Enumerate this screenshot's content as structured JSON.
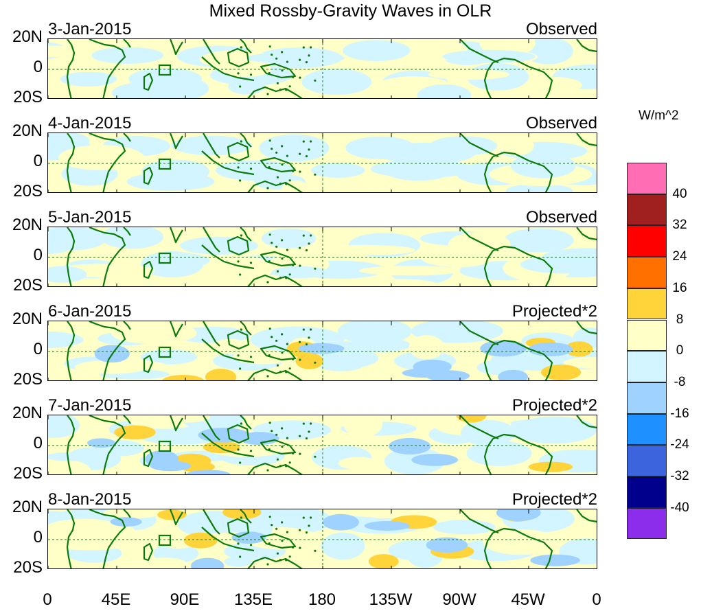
{
  "title": "Mixed Rossby-Gravity Waves in OLR",
  "units": "W/m^2",
  "panels": [
    {
      "date": "3-Jan-2015",
      "tag": "Observed"
    },
    {
      "date": "4-Jan-2015",
      "tag": "Observed"
    },
    {
      "date": "5-Jan-2015",
      "tag": "Observed"
    },
    {
      "date": "6-Jan-2015",
      "tag": "Projected*2"
    },
    {
      "date": "7-Jan-2015",
      "tag": "Projected*2"
    },
    {
      "date": "8-Jan-2015",
      "tag": "Projected*2"
    }
  ],
  "lat_labels": [
    "20N",
    "0",
    "20S"
  ],
  "lon_labels": [
    "0",
    "45E",
    "90E",
    "135E",
    "180",
    "135W",
    "90W",
    "45W",
    "0"
  ],
  "colorbar": {
    "levels": [
      "40",
      "32",
      "24",
      "16",
      "8",
      "0",
      "-8",
      "-16",
      "-24",
      "-32",
      "-40"
    ],
    "colors": [
      "#ff6eb4",
      "#a0201f",
      "#ff0000",
      "#ff7000",
      "#ffd43a",
      "#ffffc8",
      "#d2f5ff",
      "#a0d2ff",
      "#1e90ff",
      "#3c64dc",
      "#00008c",
      "#8c2dec"
    ]
  }
}
